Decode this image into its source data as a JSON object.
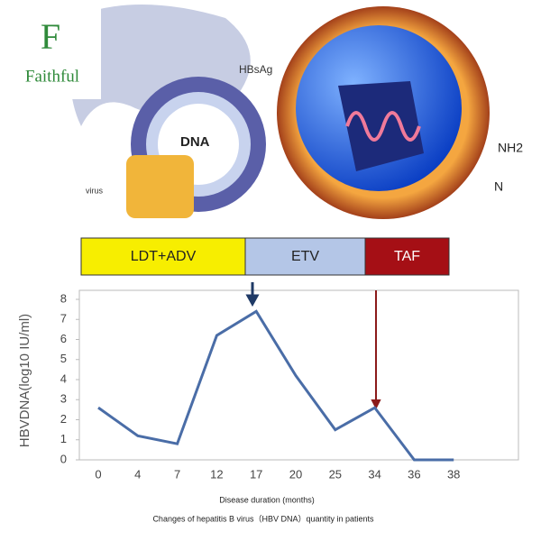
{
  "header": {
    "brand": "Faithful"
  },
  "illustration": {
    "labels": [
      "HBsAg",
      "DNA",
      "virus",
      "NH2",
      "N"
    ]
  },
  "chart_data": {
    "type": "line",
    "phases": [
      {
        "label": "LDT+ADV",
        "color": "#f7ee00"
      },
      {
        "label": "ETV",
        "color": "#b4c6e7"
      },
      {
        "label": "TAF",
        "color": "#a50f15"
      }
    ],
    "categories": [
      "0",
      "4",
      "7",
      "12",
      "17",
      "20",
      "25",
      "34",
      "36",
      "38"
    ],
    "values": [
      2.6,
      1.2,
      0.8,
      6.2,
      7.4,
      4.2,
      1.5,
      2.6,
      0,
      0
    ],
    "color": "#4a6da7",
    "ylim": [
      0,
      8
    ],
    "yticks": [
      0,
      1,
      2,
      3,
      4,
      5,
      6,
      7,
      8
    ],
    "ylabel": "HBVDNA(log10  IU/ml)",
    "xlabel": "Disease duration (months)",
    "title": "Changes of hepatitis B virus（HBV DNA）quantity in patients"
  }
}
